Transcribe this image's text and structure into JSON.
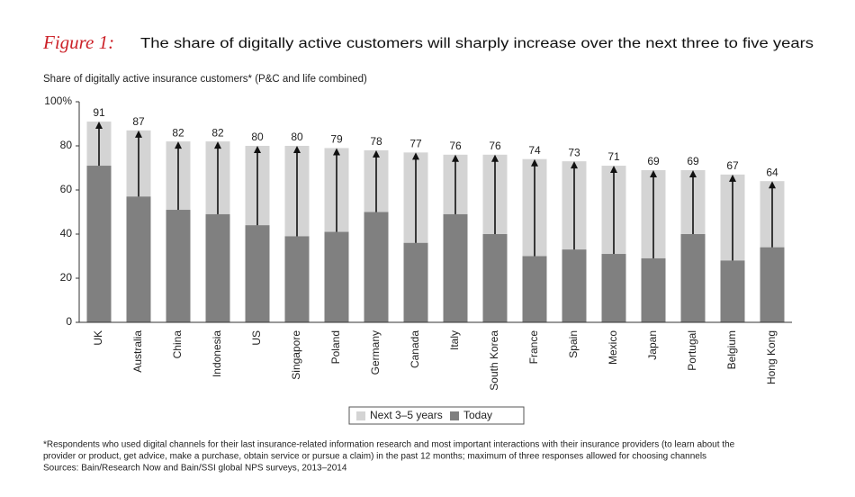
{
  "chart_data": {
    "type": "bar",
    "figure_label": "Figure 1:",
    "title": "The share of digitally active customers will sharply increase over the next three to five years",
    "subtitle": "Share of digitally active insurance customers* (P&C and life combined)",
    "categories": [
      "UK",
      "Australia",
      "China",
      "Indonesia",
      "US",
      "Singapore",
      "Poland",
      "Germany",
      "Canada",
      "Italy",
      "South Korea",
      "France",
      "Spain",
      "Mexico",
      "Japan",
      "Portugal",
      "Belgium",
      "Hong Kong"
    ],
    "series": [
      {
        "name": "Next 3–5 years",
        "color": "#d4d4d4",
        "values": [
          91,
          87,
          82,
          82,
          80,
          80,
          79,
          78,
          77,
          76,
          76,
          74,
          73,
          71,
          69,
          69,
          67,
          64
        ]
      },
      {
        "name": "Today",
        "color": "#808080",
        "values": [
          71,
          57,
          51,
          49,
          44,
          39,
          41,
          50,
          36,
          49,
          40,
          30,
          33,
          31,
          29,
          40,
          28,
          34
        ]
      }
    ],
    "ylim": [
      0,
      100
    ],
    "yticks": [
      0,
      20,
      40,
      60,
      80,
      {
        "value": 100,
        "label": "100%"
      }
    ],
    "grid": false,
    "footnote": [
      "*Respondents who used digital channels for their last insurance-related information research and most important interactions with their insurance providers (to learn about the",
      "provider or product, get advice, make a purchase, obtain service or pursue a claim) in the past 12 months; maximum of three responses allowed for choosing channels",
      "Sources: Bain/Research Now and Bain/SSI global NPS surveys, 2013–2014"
    ]
  }
}
